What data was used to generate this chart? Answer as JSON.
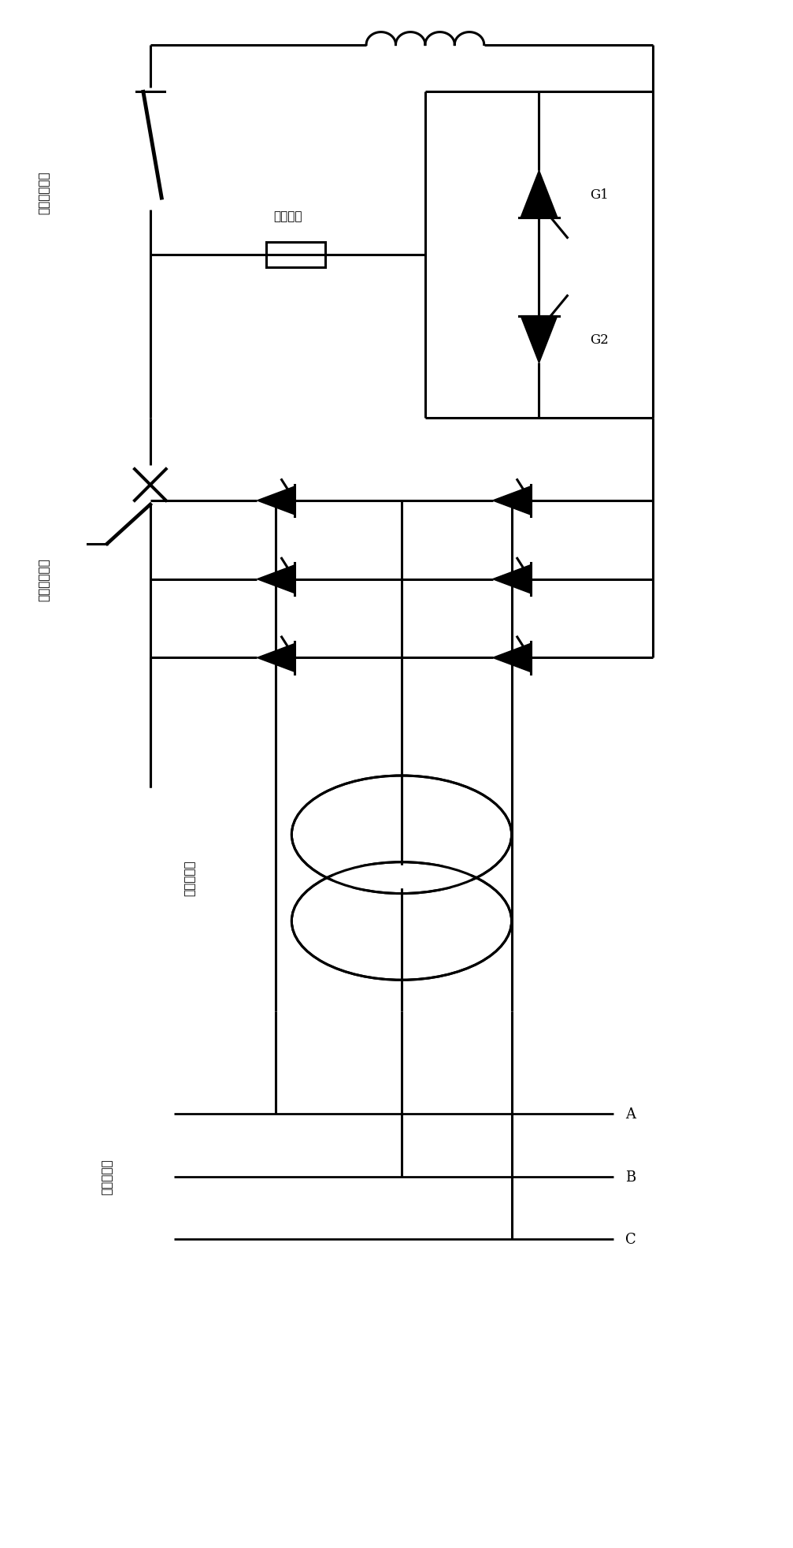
{
  "background": "#ffffff",
  "line_color": "#000000",
  "lw": 2.2,
  "fig_width": 10.07,
  "fig_height": 19.65,
  "labels": {
    "dc_switch": "直流灭磁开关",
    "resistor": "灭磁电阻",
    "scr_bridge": "可控硅整流桥",
    "excite_transformer": "励磁变压器",
    "generator_end": "发电机机端",
    "G1": "G1",
    "G2": "G2",
    "A": "A",
    "B": "B",
    "C": "C"
  }
}
